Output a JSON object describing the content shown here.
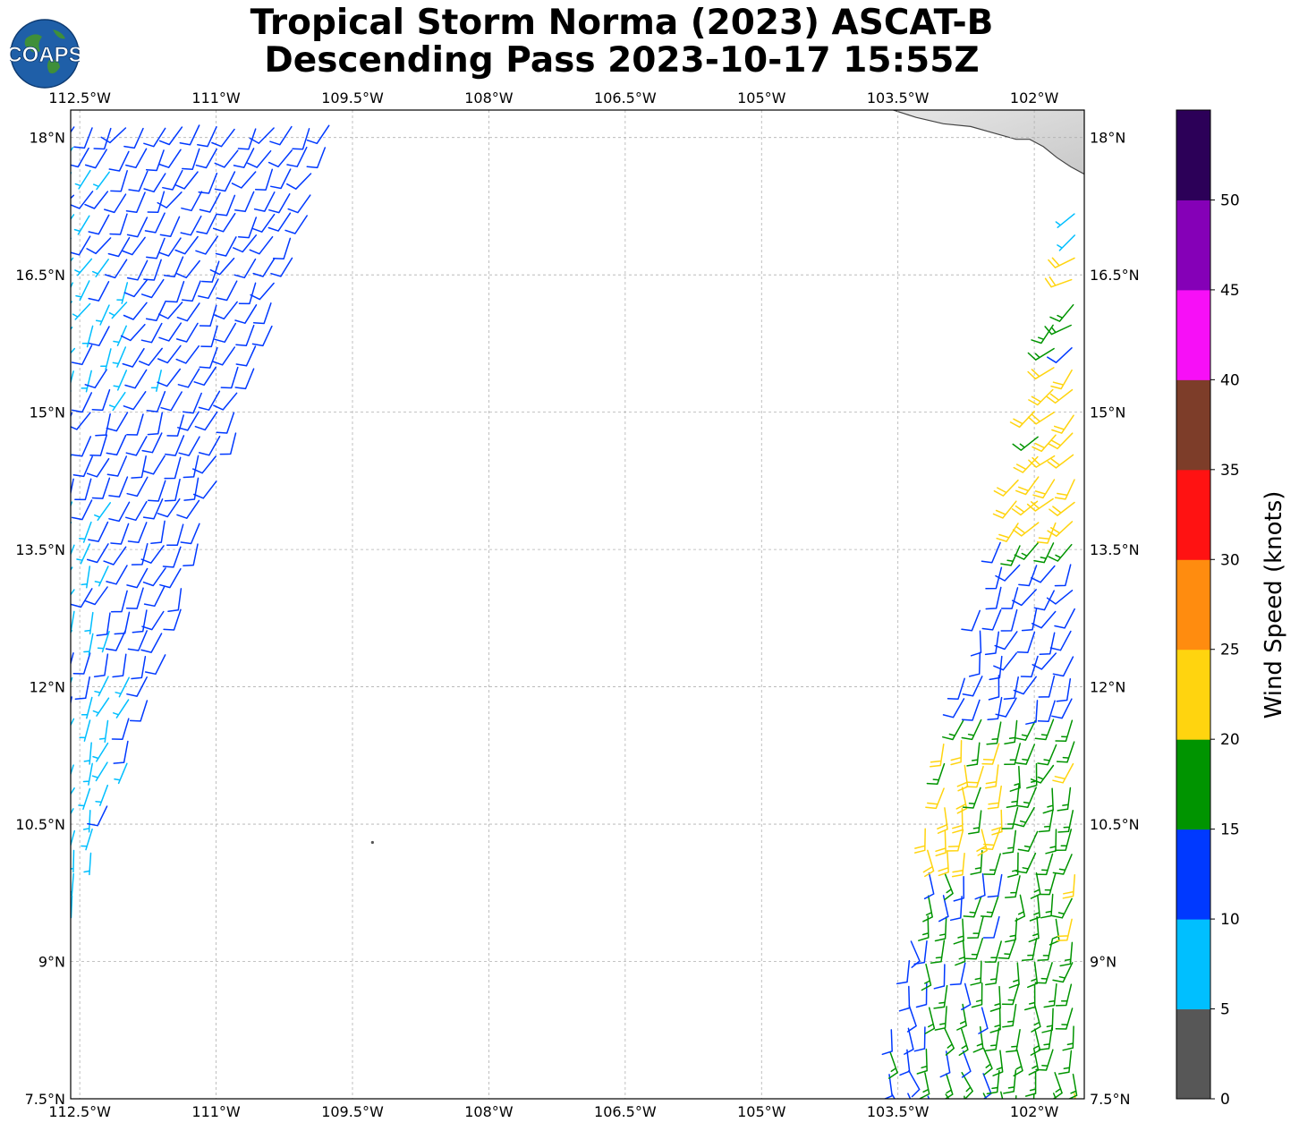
{
  "title": {
    "line1": "Tropical Storm Norma (2023) ASCAT-B",
    "line2": "Descending Pass 2023-10-17 15:55Z"
  },
  "logo": {
    "text": "COAPS",
    "icon": "globe-logo-icon"
  },
  "map": {
    "lon_range": [
      -112.6,
      -101.45
    ],
    "lat_range": [
      7.5,
      18.3
    ],
    "gridlines": true,
    "lon_ticks": [
      {
        "lon": -112.5,
        "label": "112.5°W"
      },
      {
        "lon": -111.0,
        "label": "111°W"
      },
      {
        "lon": -109.5,
        "label": "109.5°W"
      },
      {
        "lon": -108.0,
        "label": "108°W"
      },
      {
        "lon": -106.5,
        "label": "106.5°W"
      },
      {
        "lon": -105.0,
        "label": "105°W"
      },
      {
        "lon": -103.5,
        "label": "103.5°W"
      },
      {
        "lon": -102.0,
        "label": "102°W"
      }
    ],
    "lat_ticks": [
      {
        "lat": 18.0,
        "label": "18°N"
      },
      {
        "lat": 16.5,
        "label": "16.5°N"
      },
      {
        "lat": 15.0,
        "label": "15°N"
      },
      {
        "lat": 13.5,
        "label": "13.5°N"
      },
      {
        "lat": 12.0,
        "label": "12°N"
      },
      {
        "lat": 10.5,
        "label": "10.5°N"
      },
      {
        "lat": 9.0,
        "label": "9°N"
      },
      {
        "lat": 7.5,
        "label": "7.5°N"
      }
    ],
    "coastline": [
      [
        -103.55,
        18.3
      ],
      [
        -103.3,
        18.22
      ],
      [
        -103.0,
        18.15
      ],
      [
        -102.7,
        18.12
      ],
      [
        -102.45,
        18.05
      ],
      [
        -102.2,
        17.98
      ],
      [
        -102.05,
        17.98
      ],
      [
        -101.9,
        17.9
      ],
      [
        -101.75,
        17.78
      ],
      [
        -101.6,
        17.68
      ],
      [
        -101.45,
        17.6
      ]
    ],
    "island": {
      "lon": -109.28,
      "lat": 10.3
    }
  },
  "swaths": [
    {
      "name": "west",
      "poly": [
        [
          -112.6,
          18.3
        ],
        [
          -109.6,
          18.3
        ],
        [
          -110.6,
          15.2
        ],
        [
          -111.8,
          11.6
        ],
        [
          -112.6,
          9.5
        ]
      ]
    },
    {
      "name": "east",
      "poly": [
        [
          -101.45,
          18.0
        ],
        [
          -101.45,
          7.5
        ],
        [
          -103.7,
          7.5
        ],
        [
          -103.15,
          10.8
        ],
        [
          -102.45,
          13.5
        ],
        [
          -101.65,
          16.5
        ]
      ]
    }
  ],
  "colorbar": {
    "title": "Wind Speed (knots)",
    "bins": [
      {
        "min": 0,
        "max": 5,
        "color": "#575757"
      },
      {
        "min": 5,
        "max": 10,
        "color": "#00bfff"
      },
      {
        "min": 10,
        "max": 15,
        "color": "#0039ff"
      },
      {
        "min": 15,
        "max": 20,
        "color": "#009400"
      },
      {
        "min": 20,
        "max": 25,
        "color": "#ffd40f"
      },
      {
        "min": 25,
        "max": 30,
        "color": "#ff8c0f"
      },
      {
        "min": 30,
        "max": 35,
        "color": "#ff1212"
      },
      {
        "min": 35,
        "max": 40,
        "color": "#7d3d29"
      },
      {
        "min": 40,
        "max": 45,
        "color": "#f70ff7"
      },
      {
        "min": 45,
        "max": 50,
        "color": "#8500b7"
      },
      {
        "min": 50,
        "max": 55,
        "color": "#2c0058"
      }
    ],
    "tick_labels": [
      "0",
      "5",
      "10",
      "15",
      "20",
      "25",
      "30",
      "35",
      "40",
      "45",
      "50"
    ]
  }
}
